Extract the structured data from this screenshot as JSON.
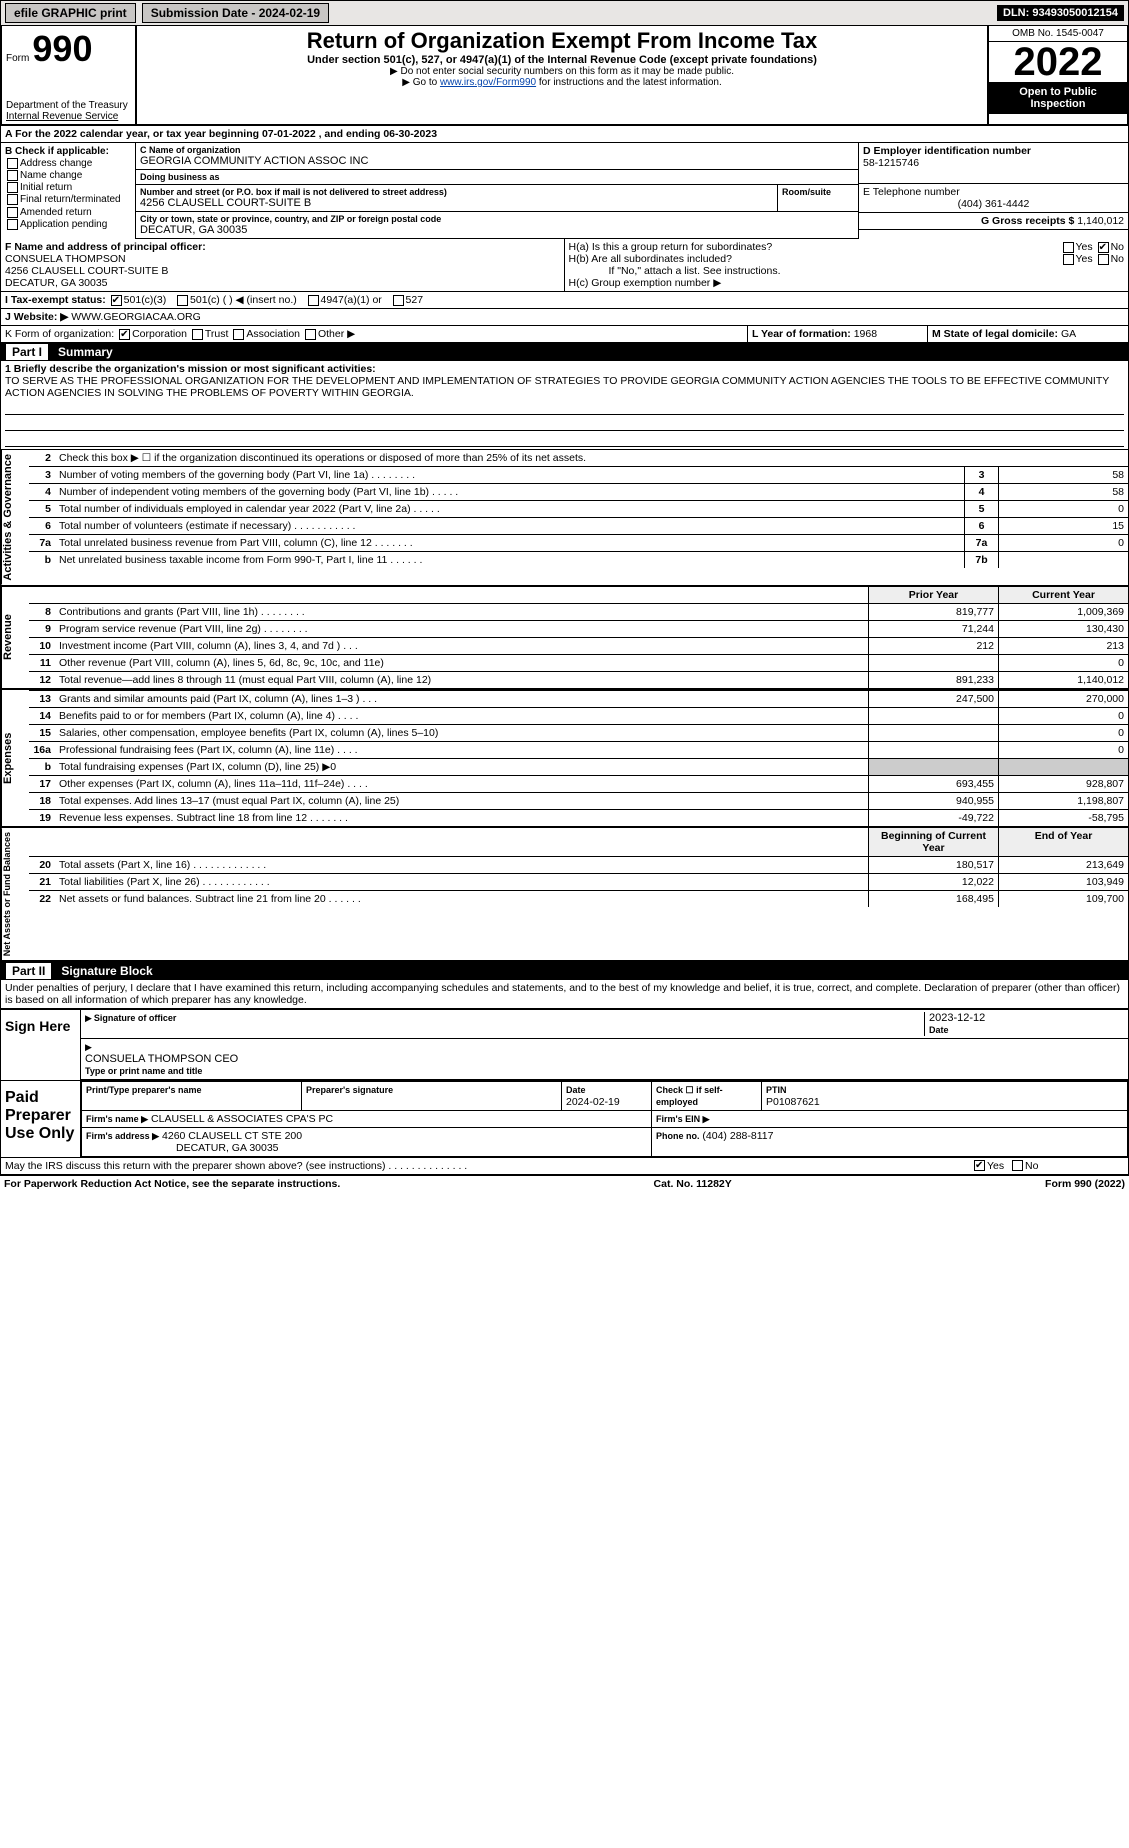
{
  "topbar": {
    "efile": "efile GRAPHIC print",
    "submission": "Submission Date - 2024-02-19",
    "dln": "DLN: 93493050012154"
  },
  "header": {
    "form_prefix": "Form",
    "form_no": "990",
    "dept": "Department of the Treasury",
    "irs": "Internal Revenue Service",
    "title": "Return of Organization Exempt From Income Tax",
    "sub": "Under section 501(c), 527, or 4947(a)(1) of the Internal Revenue Code (except private foundations)",
    "note1": "▶ Do not enter social security numbers on this form as it may be made public.",
    "note2_prefix": "▶ Go to ",
    "note2_link": "www.irs.gov/Form990",
    "note2_suffix": " for instructions and the latest information.",
    "omb": "OMB No. 1545-0047",
    "year": "2022",
    "open": "Open to Public Inspection"
  },
  "row_a": "A For the 2022 calendar year, or tax year beginning 07-01-2022     , and ending 06-30-2023",
  "section_b": {
    "check_label": "B Check if applicable:",
    "checks": [
      "Address change",
      "Name change",
      "Initial return",
      "Final return/terminated",
      "Amended return",
      "Application pending"
    ],
    "c_label": "C Name of organization",
    "c_name": "GEORGIA COMMUNITY ACTION ASSOC INC",
    "dba_label": "Doing business as",
    "dba": "",
    "street_label": "Number and street (or P.O. box if mail is not delivered to street address)",
    "room_label": "Room/suite",
    "street": "4256 CLAUSELL COURT-SUITE B",
    "city_label": "City or town, state or province, country, and ZIP or foreign postal code",
    "city": "DECATUR, GA  30035",
    "d_label": "D Employer identification number",
    "d_val": "58-1215746",
    "e_label": "E Telephone number",
    "e_val": "(404) 361-4442",
    "g_label": "G Gross receipts $",
    "g_val": "1,140,012"
  },
  "officer": {
    "f_label": "F  Name and address of principal officer:",
    "name": "CONSUELA THOMPSON",
    "addr1": "4256 CLAUSELL COURT-SUITE B",
    "addr2": "DECATUR, GA   30035"
  },
  "h": {
    "a": "H(a)  Is this a group return for subordinates?",
    "b": "H(b)  Are all subordinates included?",
    "b_note": "If \"No,\" attach a list. See instructions.",
    "c": "H(c)  Group exemption number ▶",
    "yes": "Yes",
    "no": "No"
  },
  "tax_status": {
    "i_label": "I   Tax-exempt status:",
    "opt1": "501(c)(3)",
    "opt2": "501(c) (   ) ◀ (insert no.)",
    "opt3": "4947(a)(1) or",
    "opt4": "527"
  },
  "website": {
    "j": "J   Website: ▶",
    "val": "  WWW.GEORGIACAA.ORG"
  },
  "k": {
    "label": "K Form of organization:",
    "corp": "Corporation",
    "trust": "Trust",
    "assoc": "Association",
    "other": "Other ▶"
  },
  "l": {
    "label": "L Year of formation:",
    "val": "1968"
  },
  "m": {
    "label": "M State of legal domicile:",
    "val": "GA"
  },
  "part1": {
    "label": "Part I",
    "title": "Summary"
  },
  "mission": {
    "q1": "1   Briefly describe the organization's mission or most significant activities:",
    "text": "TO SERVE AS THE PROFESSIONAL ORGANIZATION FOR THE DEVELOPMENT AND IMPLEMENTATION OF STRATEGIES TO PROVIDE GEORGIA COMMUNITY ACTION AGENCIES THE TOOLS TO BE EFFECTIVE COMMUNITY ACTION AGENCIES IN SOLVING THE PROBLEMS OF POVERTY WITHIN GEORGIA."
  },
  "gov_lines": {
    "l2": "Check this box ▶ ☐  if the organization discontinued its operations or disposed of more than 25% of its net assets.",
    "l3": {
      "d": "Number of voting members of the governing body (Part VI, line 1a)   .    .    .    .    .    .    .    .",
      "n": "3",
      "v": "58"
    },
    "l4": {
      "d": "Number of independent voting members of the governing body (Part VI, line 1b)  .    .    .    .    .",
      "n": "4",
      "v": "58"
    },
    "l5": {
      "d": "Total number of individuals employed in calendar year 2022 (Part V, line 2a)    .    .    .    .    .",
      "n": "5",
      "v": "0"
    },
    "l6": {
      "d": "Total number of volunteers (estimate if necessary)    .    .    .    .    .    .    .    .    .    .    .",
      "n": "6",
      "v": "15"
    },
    "l7a": {
      "d": "Total unrelated business revenue from Part VIII, column (C), line 12   .    .    .    .    .    .    .",
      "n": "7a",
      "v": "0"
    },
    "l7b": {
      "d": "Net unrelated business taxable income from Form 990-T, Part I, line 11    .    .    .    .    .    .",
      "n": "7b",
      "v": ""
    }
  },
  "col_headers": {
    "prior": "Prior Year",
    "curr": "Current Year"
  },
  "revenue": [
    {
      "n": "8",
      "d": "Contributions and grants (Part VIII, line 1h)    .    .    .    .    .    .    .    .",
      "p": "819,777",
      "c": "1,009,369"
    },
    {
      "n": "9",
      "d": "Program service revenue (Part VIII, line 2g)    .    .    .    .    .    .    .    .",
      "p": "71,244",
      "c": "130,430"
    },
    {
      "n": "10",
      "d": "Investment income (Part VIII, column (A), lines 3, 4, and 7d )    .    .    .",
      "p": "212",
      "c": "213"
    },
    {
      "n": "11",
      "d": "Other revenue (Part VIII, column (A), lines 5, 6d, 8c, 9c, 10c, and 11e)",
      "p": "",
      "c": "0"
    },
    {
      "n": "12",
      "d": "Total revenue—add lines 8 through 11 (must equal Part VIII, column (A), line 12)",
      "p": "891,233",
      "c": "1,140,012"
    }
  ],
  "expenses": [
    {
      "n": "13",
      "d": "Grants and similar amounts paid (Part IX, column (A), lines 1–3 )  .    .    .",
      "p": "247,500",
      "c": "270,000"
    },
    {
      "n": "14",
      "d": "Benefits paid to or for members (Part IX, column (A), line 4)   .    .    .    .",
      "p": "",
      "c": "0"
    },
    {
      "n": "15",
      "d": "Salaries, other compensation, employee benefits (Part IX, column (A), lines 5–10)",
      "p": "",
      "c": "0"
    },
    {
      "n": "16a",
      "d": "Professional fundraising fees (Part IX, column (A), line 11e)  .    .    .    .",
      "p": "",
      "c": "0"
    },
    {
      "n": "b",
      "d": "Total fundraising expenses (Part IX, column (D), line 25) ▶0",
      "p": "—shade—",
      "c": "—shade—"
    },
    {
      "n": "17",
      "d": "Other expenses (Part IX, column (A), lines 11a–11d, 11f–24e)   .    .    .    .",
      "p": "693,455",
      "c": "928,807"
    },
    {
      "n": "18",
      "d": "Total expenses. Add lines 13–17 (must equal Part IX, column (A), line 25)",
      "p": "940,955",
      "c": "1,198,807"
    },
    {
      "n": "19",
      "d": "Revenue less expenses. Subtract line 18 from line 12 .    .    .    .    .    .    .",
      "p": "-49,722",
      "c": "-58,795"
    }
  ],
  "net_headers": {
    "b": "Beginning of Current Year",
    "e": "End of Year"
  },
  "net": [
    {
      "n": "20",
      "d": "Total assets (Part X, line 16)  .    .    .    .    .    .    .    .    .    .    .    .    .",
      "p": "180,517",
      "c": "213,649"
    },
    {
      "n": "21",
      "d": "Total liabilities (Part X, line 26)  .    .    .    .    .    .    .    .    .    .    .    .",
      "p": "12,022",
      "c": "103,949"
    },
    {
      "n": "22",
      "d": "Net assets or fund balances. Subtract line 21 from line 20 .    .    .    .    .    .",
      "p": "168,495",
      "c": "109,700"
    }
  ],
  "part2": {
    "label": "Part II",
    "title": "Signature Block"
  },
  "penalties": "Under penalties of perjury, I declare that I have examined this return, including accompanying schedules and statements, and to the best of my knowledge and belief, it is true, correct, and complete. Declaration of preparer (other than officer) is based on all information of which preparer has any knowledge.",
  "sign": {
    "here": "Sign Here",
    "sig_officer": "Signature of officer",
    "date": "Date",
    "sig_date": "2023-12-12",
    "name": "CONSUELA THOMPSON  CEO",
    "type": "Type or print name and title"
  },
  "paid": {
    "label": "Paid Preparer Use Only",
    "h1": "Print/Type preparer's name",
    "h2": "Preparer's signature",
    "h3": "Date",
    "h3v": "2024-02-19",
    "h4": "Check ☐ if self-employed",
    "h5": "PTIN",
    "h5v": "P01087621",
    "firm_name_l": "Firm's name    ▶",
    "firm_name": "CLAUSELL & ASSOCIATES CPA'S PC",
    "firm_ein_l": "Firm's EIN ▶",
    "firm_ein": "",
    "firm_addr_l": "Firm's address ▶",
    "firm_addr": "4260 CLAUSELL CT STE 200",
    "firm_city": "DECATUR, GA  30035",
    "phone_l": "Phone no.",
    "phone": "(404) 288-8117"
  },
  "may_irs": "May the IRS discuss this return with the preparer shown above? (see instructions)    .    .    .    .    .    .    .    .    .    .    .    .    .    .",
  "footer": {
    "left": "For Paperwork Reduction Act Notice, see the separate instructions.",
    "mid": "Cat. No. 11282Y",
    "right": "Form 990 (2022)"
  },
  "side_labels": {
    "gov": "Activities & Governance",
    "rev": "Revenue",
    "exp": "Expenses",
    "net": "Net Assets or Fund Balances"
  }
}
